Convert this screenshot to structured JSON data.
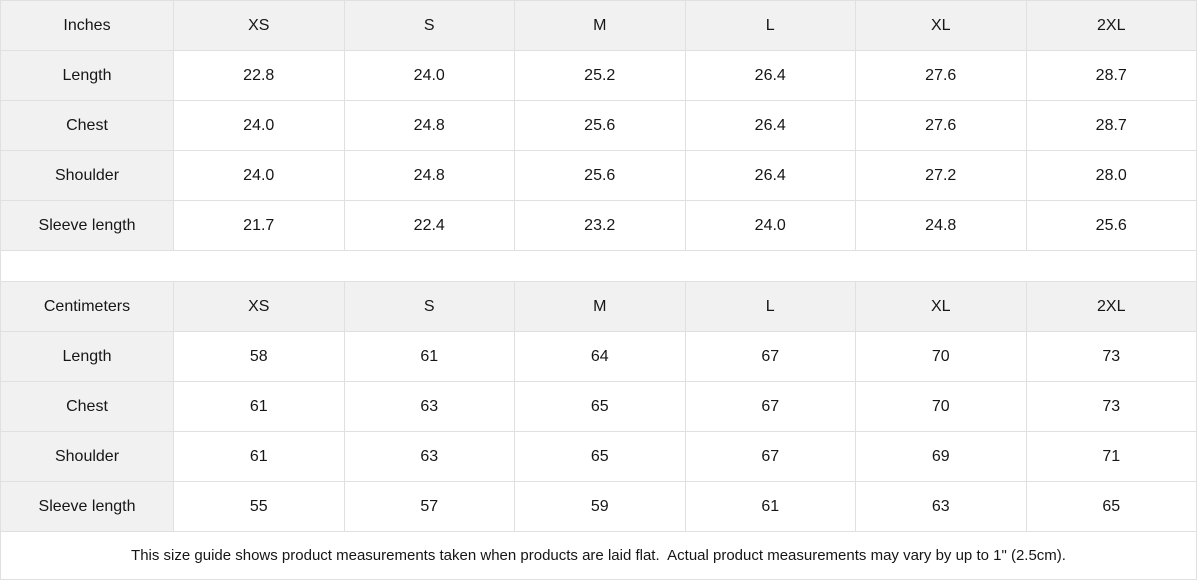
{
  "tables": [
    {
      "unit_label": "Inches",
      "columns": [
        "XS",
        "S",
        "M",
        "L",
        "XL",
        "2XL"
      ],
      "rows": [
        {
          "label": "Length",
          "values": [
            "22.8",
            "24.0",
            "25.2",
            "26.4",
            "27.6",
            "28.7"
          ]
        },
        {
          "label": "Chest",
          "values": [
            "24.0",
            "24.8",
            "25.6",
            "26.4",
            "27.6",
            "28.7"
          ]
        },
        {
          "label": "Shoulder",
          "values": [
            "24.0",
            "24.8",
            "25.6",
            "26.4",
            "27.2",
            "28.0"
          ]
        },
        {
          "label": "Sleeve length",
          "values": [
            "21.7",
            "22.4",
            "23.2",
            "24.0",
            "24.8",
            "25.6"
          ]
        }
      ]
    },
    {
      "unit_label": "Centimeters",
      "columns": [
        "XS",
        "S",
        "M",
        "L",
        "XL",
        "2XL"
      ],
      "rows": [
        {
          "label": "Length",
          "values": [
            "58",
            "61",
            "64",
            "67",
            "70",
            "73"
          ]
        },
        {
          "label": "Chest",
          "values": [
            "61",
            "63",
            "65",
            "67",
            "70",
            "73"
          ]
        },
        {
          "label": "Shoulder",
          "values": [
            "61",
            "63",
            "65",
            "67",
            "69",
            "71"
          ]
        },
        {
          "label": "Sleeve length",
          "values": [
            "55",
            "57",
            "59",
            "61",
            "63",
            "65"
          ]
        }
      ]
    }
  ],
  "footer": {
    "note": "This size guide shows product measurements taken when products are laid flat.  Actual product measurements may vary by up to 1\" (2.5cm)."
  },
  "colors": {
    "header_background": "#f1f1f1",
    "border": "#e0e0e0",
    "text": "#161616",
    "background": "#ffffff"
  }
}
